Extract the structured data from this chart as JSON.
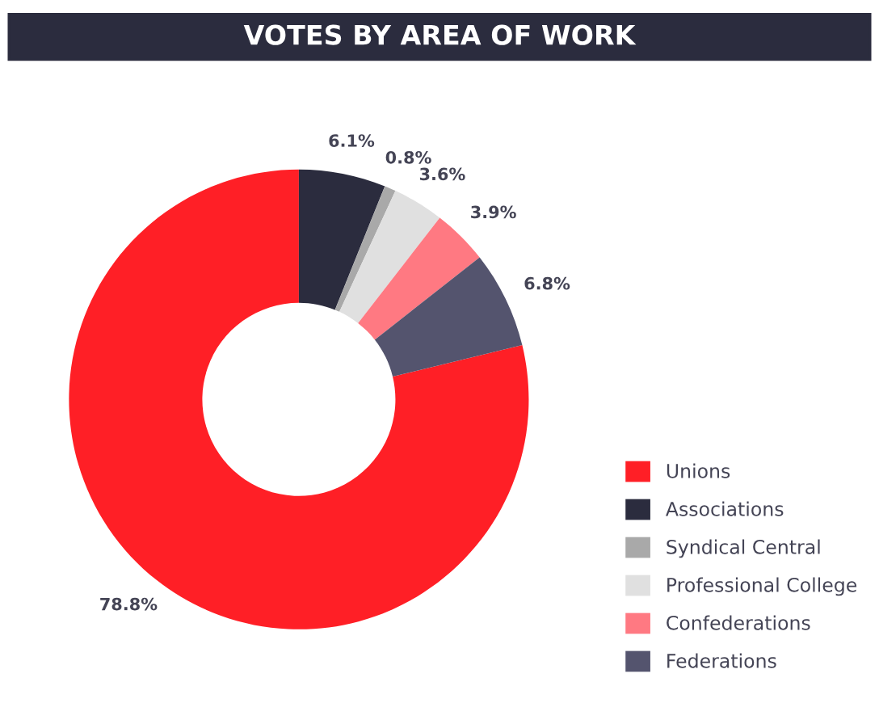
{
  "chart_data": {
    "type": "donut",
    "title": "VOTES BY AREA OF WORK",
    "categories": [
      "Unions",
      "Associations",
      "Syndical Central",
      "Professional College",
      "Confederations",
      "Federations"
    ],
    "values": [
      78.8,
      6.1,
      0.8,
      3.6,
      3.9,
      6.8
    ],
    "colors": [
      "#ff1f26",
      "#2b2c3e",
      "#a9a9a9",
      "#e0e0e0",
      "#ff7982",
      "#54546e"
    ],
    "value_labels": [
      "78.8%",
      "6.1%",
      "0.8%",
      "3.6%",
      "3.9%",
      "6.8%"
    ],
    "legend": "bottom right"
  }
}
